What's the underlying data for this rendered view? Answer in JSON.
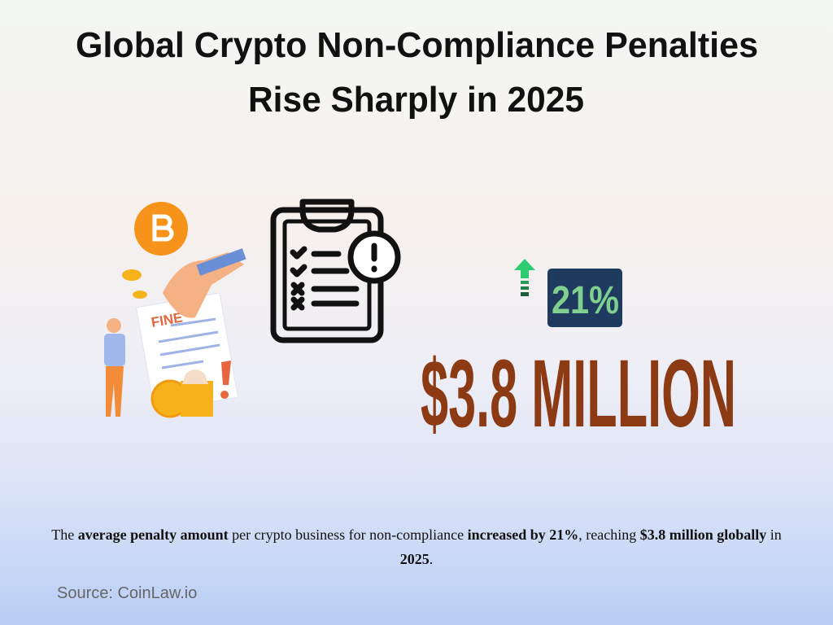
{
  "title": {
    "lines": [
      "Global Crypto Non-Compliance Penalties",
      "Rise Sharply in 2025"
    ]
  },
  "illustration": {
    "fine_label": "FINE"
  },
  "stat": {
    "change": "21%",
    "amount": "$3.8 MILLION"
  },
  "caption": {
    "segments": [
      {
        "text": "The ",
        "bold": false
      },
      {
        "text": "average penalty amount",
        "bold": true
      },
      {
        "text": " per crypto business for non-compliance ",
        "bold": false
      },
      {
        "text": "increased by 21%",
        "bold": true
      },
      {
        "text": ", reaching ",
        "bold": false
      },
      {
        "text": "$3.8 million globally",
        "bold": true
      },
      {
        "text": " in ",
        "bold": false
      },
      {
        "text": "2025",
        "bold": true
      },
      {
        "text": ".",
        "bold": false
      }
    ]
  },
  "source": "Source: CoinLaw.io"
}
